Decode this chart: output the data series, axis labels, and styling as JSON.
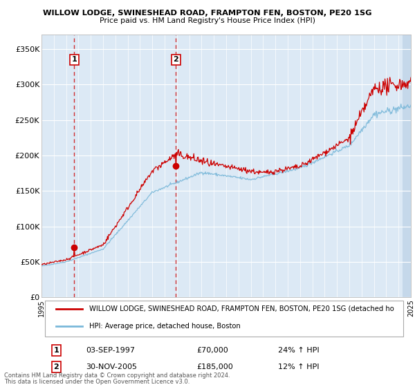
{
  "title1": "WILLOW LODGE, SWINESHEAD ROAD, FRAMPTON FEN, BOSTON, PE20 1SG",
  "title2": "Price paid vs. HM Land Registry's House Price Index (HPI)",
  "ylabel_ticks": [
    "£0",
    "£50K",
    "£100K",
    "£150K",
    "£200K",
    "£250K",
    "£300K",
    "£350K"
  ],
  "ylabel_values": [
    0,
    50000,
    100000,
    150000,
    200000,
    250000,
    300000,
    350000
  ],
  "ylim": [
    0,
    370000
  ],
  "sale1_date": "03-SEP-1997",
  "sale1_price": 70000,
  "sale1_hpi": "24% ↑ HPI",
  "sale1_year": 1997.67,
  "sale2_date": "30-NOV-2005",
  "sale2_price": 185000,
  "sale2_hpi": "12% ↑ HPI",
  "sale2_year": 2005.92,
  "legend_label1": "WILLOW LODGE, SWINESHEAD ROAD, FRAMPTON FEN, BOSTON, PE20 1SG (detached ho",
  "legend_label2": "HPI: Average price, detached house, Boston",
  "footer1": "Contains HM Land Registry data © Crown copyright and database right 2024.",
  "footer2": "This data is licensed under the Open Government Licence v3.0.",
  "hpi_color": "#7ab8d9",
  "price_color": "#cc0000",
  "bg_color": "#dce9f5",
  "grid_color": "#ffffff",
  "xstart": 1995,
  "xend": 2025
}
